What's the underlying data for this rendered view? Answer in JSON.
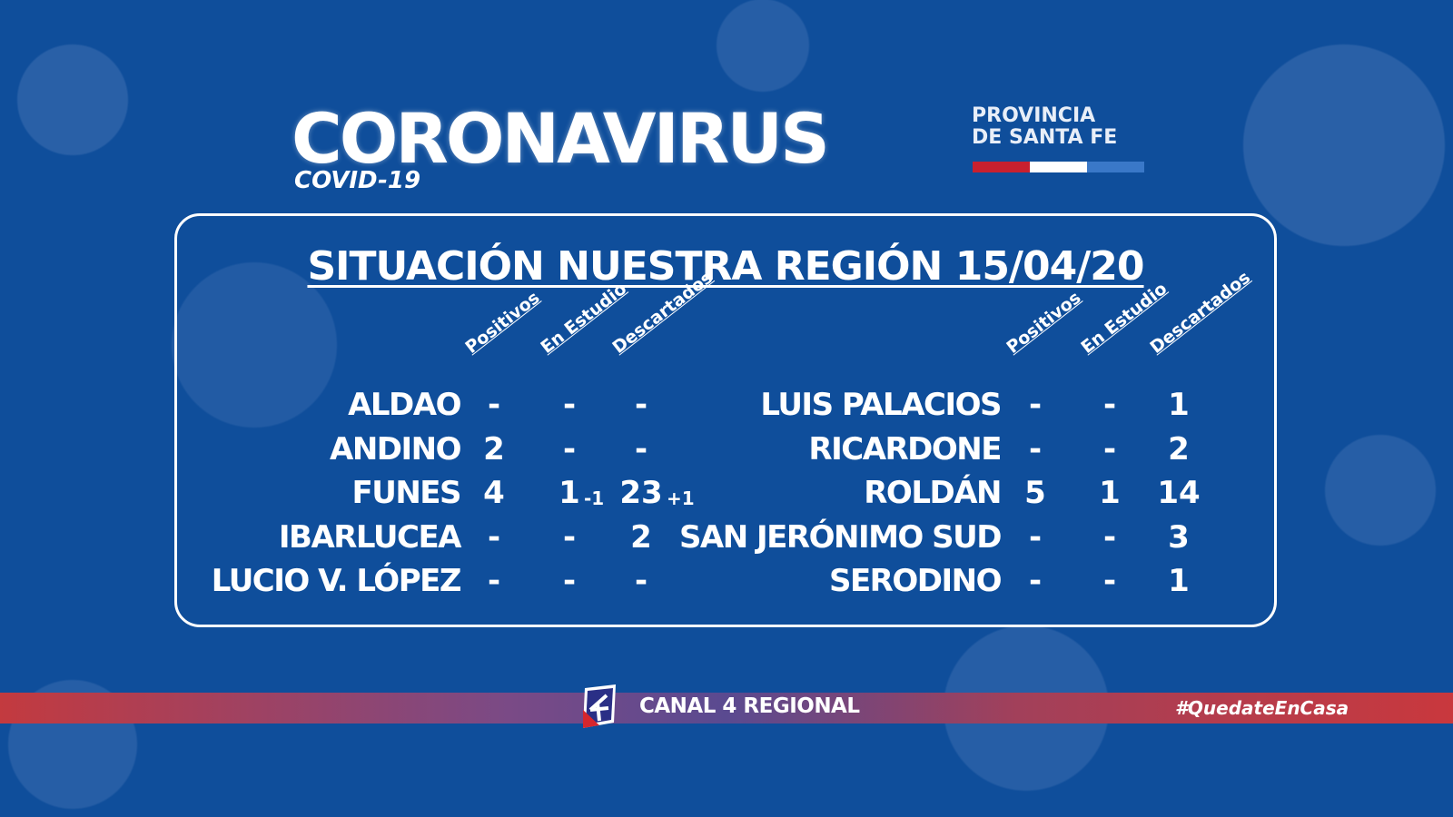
{
  "header": {
    "logo": "CORONAVIRUS",
    "subtitle": "COVID-19",
    "province_line1": "PROVINCIA",
    "province_line2": "DE SANTA FE",
    "flag_colors": [
      "#c8202f",
      "#ffffff",
      "#3a78c8"
    ]
  },
  "title": "SITUACIÓN NUESTRA REGIÓN 15/04/20",
  "columns": [
    "Positivos",
    "En Estudio",
    "Descartados"
  ],
  "left_rows": [
    {
      "name": "ALDAO",
      "positivos": "-",
      "en_estudio": "-",
      "descartados": "-"
    },
    {
      "name": "ANDINO",
      "positivos": "2",
      "en_estudio": "-",
      "descartados": "-"
    },
    {
      "name": "FUNES",
      "positivos": "4",
      "en_estudio": "1",
      "en_estudio_delta": "-1",
      "descartados": "23",
      "descartados_delta": "+1"
    },
    {
      "name": "IBARLUCEA",
      "positivos": "-",
      "en_estudio": "-",
      "descartados": "2"
    },
    {
      "name": "LUCIO V. LÓPEZ",
      "positivos": "-",
      "en_estudio": "-",
      "descartados": "-"
    }
  ],
  "right_rows": [
    {
      "name": "LUIS PALACIOS",
      "positivos": "-",
      "en_estudio": "-",
      "descartados": "1"
    },
    {
      "name": "RICARDONE",
      "positivos": "-",
      "en_estudio": "-",
      "descartados": "2"
    },
    {
      "name": "ROLDÁN",
      "positivos": "5",
      "en_estudio": "1",
      "descartados": "14"
    },
    {
      "name": "SAN JERÓNIMO SUD",
      "positivos": "-",
      "en_estudio": "-",
      "descartados": "3"
    },
    {
      "name": "SERODINO",
      "positivos": "-",
      "en_estudio": "-",
      "descartados": "1"
    }
  ],
  "footer": {
    "channel": "CANAL 4 REGIONAL",
    "hashtag": "#QuedateEnCasa"
  },
  "colors": {
    "background": "#0f4e9b",
    "band_red": "#c9383d"
  }
}
